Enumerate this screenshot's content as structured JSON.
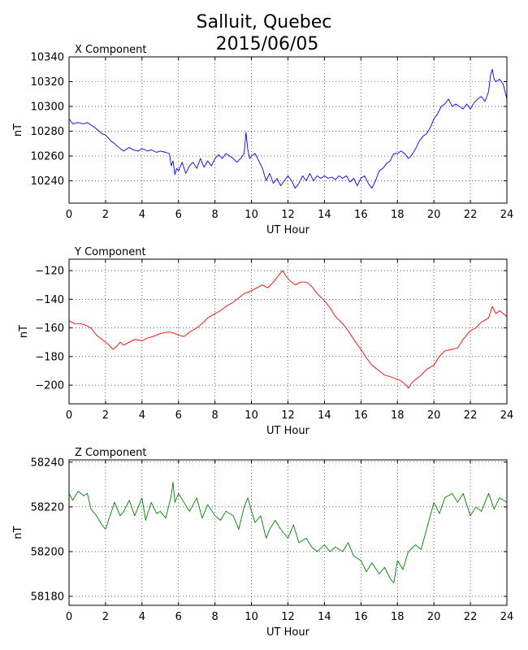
{
  "title": "Salluit, Quebec",
  "subtitle": "2015/06/05",
  "chart_data": [
    {
      "type": "line",
      "title": "X Component",
      "xlabel": "UT Hour",
      "ylabel": "nT",
      "xlim": [
        0,
        24
      ],
      "ylim": [
        10222,
        10340
      ],
      "xticks": [
        "0",
        "2",
        "4",
        "6",
        "8",
        "10",
        "12",
        "14",
        "16",
        "18",
        "20",
        "22",
        "24"
      ],
      "yticks": [
        "10240",
        "10260",
        "10280",
        "10300",
        "10320",
        "10340"
      ],
      "grid": true,
      "series": [
        {
          "color": "#0000ff",
          "x": [
            0,
            0.2,
            0.5,
            0.8,
            1.0,
            1.2,
            1.5,
            1.8,
            2.0,
            2.3,
            2.5,
            2.8,
            3.0,
            3.3,
            3.5,
            3.8,
            4.0,
            4.3,
            4.5,
            4.8,
            5.0,
            5.3,
            5.5,
            5.6,
            5.7,
            5.8,
            5.9,
            6.0,
            6.2,
            6.4,
            6.6,
            6.8,
            7.0,
            7.2,
            7.4,
            7.6,
            7.8,
            8.0,
            8.2,
            8.4,
            8.6,
            8.8,
            9.0,
            9.2,
            9.4,
            9.6,
            9.7,
            9.8,
            9.9,
            10.0,
            10.2,
            10.4,
            10.6,
            10.8,
            11.0,
            11.2,
            11.4,
            11.6,
            11.8,
            12.0,
            12.2,
            12.4,
            12.6,
            12.8,
            13.0,
            13.2,
            13.4,
            13.6,
            13.8,
            14.0,
            14.2,
            14.4,
            14.6,
            14.8,
            15.0,
            15.2,
            15.4,
            15.6,
            15.8,
            16.0,
            16.2,
            16.4,
            16.6,
            16.8,
            17.0,
            17.2,
            17.4,
            17.6,
            17.8,
            18.0,
            18.2,
            18.4,
            18.6,
            18.8,
            19.0,
            19.2,
            19.4,
            19.6,
            19.8,
            20.0,
            20.2,
            20.4,
            20.6,
            20.8,
            21.0,
            21.2,
            21.4,
            21.6,
            21.8,
            22.0,
            22.2,
            22.4,
            22.6,
            22.8,
            23.0,
            23.1,
            23.2,
            23.3,
            23.4,
            23.6,
            23.8,
            24.0
          ],
          "values": [
            10290,
            10286,
            10287,
            10286,
            10287,
            10285,
            10282,
            10278,
            10277,
            10272,
            10270,
            10266,
            10264,
            10267,
            10265,
            10264,
            10266,
            10264,
            10265,
            10263,
            10264,
            10263,
            10262,
            10252,
            10256,
            10245,
            10250,
            10248,
            10255,
            10246,
            10252,
            10255,
            10250,
            10258,
            10251,
            10256,
            10252,
            10258,
            10261,
            10258,
            10262,
            10260,
            10258,
            10255,
            10258,
            10262,
            10279,
            10265,
            10258,
            10260,
            10262,
            10256,
            10250,
            10240,
            10246,
            10238,
            10242,
            10236,
            10240,
            10244,
            10240,
            10234,
            10238,
            10244,
            10240,
            10246,
            10240,
            10244,
            10242,
            10244,
            10242,
            10243,
            10241,
            10244,
            10242,
            10244,
            10239,
            10242,
            10236,
            10242,
            10244,
            10238,
            10234,
            10240,
            10248,
            10250,
            10254,
            10256,
            10262,
            10262,
            10264,
            10262,
            10258,
            10261,
            10266,
            10272,
            10276,
            10278,
            10283,
            10290,
            10294,
            10300,
            10302,
            10306,
            10300,
            10302,
            10300,
            10298,
            10302,
            10298,
            10303,
            10306,
            10308,
            10304,
            10312,
            10325,
            10330,
            10322,
            10320,
            10322,
            10318,
            10306
          ]
        }
      ]
    },
    {
      "type": "line",
      "title": "Y Component",
      "xlabel": "UT Hour",
      "ylabel": "nT",
      "xlim": [
        0,
        24
      ],
      "ylim": [
        -213,
        -112
      ],
      "xticks": [
        "0",
        "2",
        "4",
        "6",
        "8",
        "10",
        "12",
        "14",
        "16",
        "18",
        "20",
        "22",
        "24"
      ],
      "yticks": [
        "−120",
        "−140",
        "−160",
        "−180",
        "−200"
      ],
      "grid": true,
      "series": [
        {
          "color": "#ff0000",
          "x": [
            0,
            0.3,
            0.6,
            0.9,
            1.2,
            1.5,
            1.8,
            2.0,
            2.2,
            2.4,
            2.6,
            2.8,
            3.0,
            3.3,
            3.6,
            4.0,
            4.3,
            4.6,
            5.0,
            5.3,
            5.6,
            6.0,
            6.3,
            6.6,
            7.0,
            7.3,
            7.6,
            8.0,
            8.3,
            8.6,
            9.0,
            9.3,
            9.6,
            10.0,
            10.3,
            10.6,
            10.9,
            11.2,
            11.5,
            11.7,
            11.9,
            12.1,
            12.4,
            12.7,
            13.0,
            13.3,
            13.6,
            14.0,
            14.3,
            14.6,
            15.0,
            15.3,
            15.6,
            16.0,
            16.3,
            16.6,
            17.0,
            17.3,
            17.6,
            18.0,
            18.2,
            18.4,
            18.6,
            18.8,
            19.0,
            19.3,
            19.6,
            20.0,
            20.3,
            20.6,
            21.0,
            21.3,
            21.6,
            22.0,
            22.3,
            22.6,
            23.0,
            23.2,
            23.4,
            23.6,
            23.8,
            24.0
          ],
          "values": [
            -155,
            -157,
            -157,
            -158,
            -160,
            -165,
            -168,
            -170,
            -172,
            -175,
            -173,
            -170,
            -172,
            -170,
            -168,
            -169,
            -167,
            -166,
            -164,
            -163,
            -163,
            -165,
            -166,
            -163,
            -160,
            -157,
            -153,
            -150,
            -148,
            -145,
            -142,
            -139,
            -136,
            -134,
            -132,
            -130,
            -132,
            -128,
            -123,
            -120,
            -124,
            -127,
            -130,
            -128,
            -128,
            -131,
            -136,
            -141,
            -146,
            -152,
            -157,
            -162,
            -168,
            -175,
            -181,
            -186,
            -190,
            -193,
            -194,
            -196,
            -197,
            -199,
            -202,
            -198,
            -196,
            -193,
            -189,
            -186,
            -180,
            -176,
            -175,
            -174,
            -168,
            -162,
            -160,
            -156,
            -153,
            -145,
            -150,
            -148,
            -150,
            -152
          ]
        }
      ]
    },
    {
      "type": "line",
      "title": "Z Component",
      "xlabel": "UT Hour",
      "ylabel": "nT",
      "xlim": [
        0,
        24
      ],
      "ylim": [
        58176,
        58241
      ],
      "xticks": [
        "0",
        "2",
        "4",
        "6",
        "8",
        "10",
        "12",
        "14",
        "16",
        "18",
        "20",
        "22",
        "24"
      ],
      "yticks": [
        "58240",
        "58220",
        "58200",
        "58180"
      ],
      "grid": true,
      "series": [
        {
          "color": "#008000",
          "x": [
            0,
            0.2,
            0.5,
            0.8,
            1.0,
            1.2,
            1.5,
            1.8,
            2.0,
            2.2,
            2.5,
            2.8,
            3.0,
            3.3,
            3.6,
            4.0,
            4.2,
            4.5,
            4.8,
            5.0,
            5.3,
            5.6,
            5.7,
            5.8,
            6.0,
            6.3,
            6.6,
            7.0,
            7.3,
            7.6,
            8.0,
            8.3,
            8.6,
            9.0,
            9.3,
            9.6,
            9.8,
            10.0,
            10.2,
            10.5,
            10.8,
            11.0,
            11.3,
            11.6,
            12.0,
            12.3,
            12.6,
            13.0,
            13.3,
            13.6,
            14.0,
            14.3,
            14.6,
            15.0,
            15.3,
            15.6,
            16.0,
            16.3,
            16.6,
            17.0,
            17.3,
            17.6,
            17.8,
            18.0,
            18.3,
            18.6,
            19.0,
            19.3,
            19.6,
            20.0,
            20.3,
            20.6,
            21.0,
            21.3,
            21.6,
            22.0,
            22.3,
            22.6,
            23.0,
            23.3,
            23.6,
            24.0
          ],
          "values": [
            58226,
            58223,
            58227,
            58225,
            58226,
            58219,
            58216,
            58212,
            58210,
            58215,
            58222,
            58216,
            58218,
            58223,
            58216,
            58224,
            58214,
            58222,
            58217,
            58218,
            58215,
            58225,
            58231,
            58222,
            58226,
            58222,
            58218,
            58224,
            58215,
            58221,
            58216,
            58214,
            58218,
            58216,
            58210,
            58220,
            58224,
            58218,
            58213,
            58216,
            58206,
            58210,
            58214,
            58210,
            58206,
            58212,
            58204,
            58206,
            58202,
            58200,
            58203,
            58200,
            58202,
            58200,
            58204,
            58198,
            58196,
            58191,
            58195,
            58190,
            58193,
            58188,
            58186,
            58196,
            58192,
            58200,
            58203,
            58201,
            58210,
            58222,
            58217,
            58224,
            58226,
            58222,
            58226,
            58216,
            58220,
            58218,
            58226,
            58219,
            58224,
            58222
          ]
        }
      ]
    }
  ]
}
